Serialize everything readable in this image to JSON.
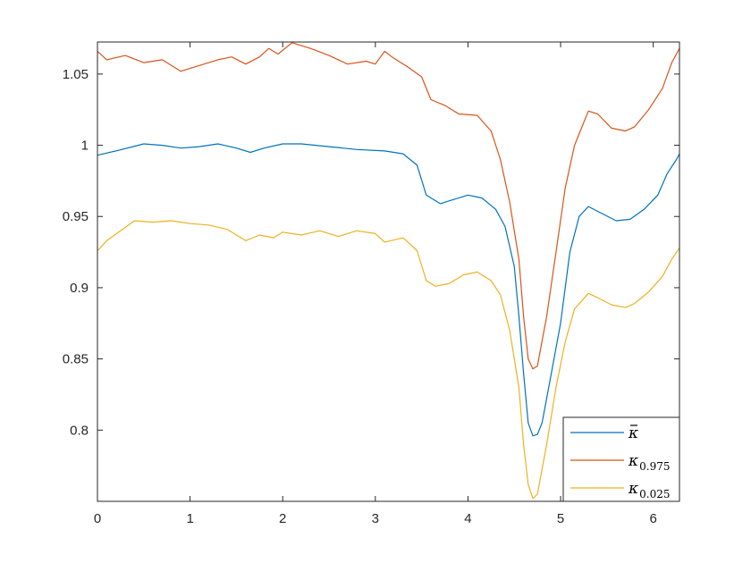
{
  "chart_data": {
    "type": "line",
    "title": "",
    "xlabel": "",
    "ylabel": "",
    "xlim": [
      0,
      6.2832
    ],
    "ylim": [
      0.75,
      1.0725
    ],
    "grid": false,
    "legend_position": "bottom-right",
    "x_ticks": [
      0,
      1,
      2,
      3,
      4,
      5,
      6
    ],
    "x_tick_labels": [
      "0",
      "1",
      "2",
      "3",
      "4",
      "5",
      "6"
    ],
    "y_ticks": [
      0.8,
      0.85,
      0.9,
      0.95,
      1.0,
      1.05
    ],
    "y_tick_labels": [
      "0.8",
      "0.85",
      "0.9",
      "0.95",
      "1",
      "1.05"
    ],
    "series": [
      {
        "name": "κ̄",
        "legend_base": "κ",
        "legend_bar": true,
        "legend_sub": "",
        "color": "#0072BD",
        "points": [
          [
            0,
            0.993
          ],
          [
            0.2,
            0.996
          ],
          [
            0.5,
            1.001
          ],
          [
            0.7,
            1.0
          ],
          [
            0.9,
            0.998
          ],
          [
            1.1,
            0.999
          ],
          [
            1.3,
            1.001
          ],
          [
            1.5,
            0.998
          ],
          [
            1.65,
            0.995
          ],
          [
            1.8,
            0.998
          ],
          [
            2.0,
            1.001
          ],
          [
            2.2,
            1.001
          ],
          [
            2.5,
            0.999
          ],
          [
            2.8,
            0.997
          ],
          [
            3.1,
            0.996
          ],
          [
            3.3,
            0.994
          ],
          [
            3.45,
            0.986
          ],
          [
            3.55,
            0.965
          ],
          [
            3.7,
            0.959
          ],
          [
            3.85,
            0.962
          ],
          [
            4.0,
            0.965
          ],
          [
            4.15,
            0.963
          ],
          [
            4.3,
            0.955
          ],
          [
            4.4,
            0.943
          ],
          [
            4.5,
            0.915
          ],
          [
            4.55,
            0.88
          ],
          [
            4.6,
            0.84
          ],
          [
            4.65,
            0.805
          ],
          [
            4.7,
            0.796
          ],
          [
            4.75,
            0.797
          ],
          [
            4.8,
            0.805
          ],
          [
            4.9,
            0.84
          ],
          [
            5.0,
            0.875
          ],
          [
            5.05,
            0.9
          ],
          [
            5.1,
            0.925
          ],
          [
            5.2,
            0.95
          ],
          [
            5.3,
            0.957
          ],
          [
            5.45,
            0.952
          ],
          [
            5.6,
            0.947
          ],
          [
            5.75,
            0.948
          ],
          [
            5.9,
            0.955
          ],
          [
            6.05,
            0.965
          ],
          [
            6.15,
            0.98
          ],
          [
            6.25,
            0.99
          ],
          [
            6.2832,
            0.994
          ]
        ]
      },
      {
        "name": "κ0.975",
        "legend_base": "κ",
        "legend_bar": false,
        "legend_sub": "0.975",
        "color": "#D95319",
        "points": [
          [
            0,
            1.066
          ],
          [
            0.1,
            1.06
          ],
          [
            0.3,
            1.063
          ],
          [
            0.5,
            1.058
          ],
          [
            0.7,
            1.06
          ],
          [
            0.9,
            1.052
          ],
          [
            1.1,
            1.056
          ],
          [
            1.3,
            1.06
          ],
          [
            1.45,
            1.062
          ],
          [
            1.6,
            1.057
          ],
          [
            1.75,
            1.062
          ],
          [
            1.85,
            1.068
          ],
          [
            1.95,
            1.064
          ],
          [
            2.1,
            1.072
          ],
          [
            2.3,
            1.068
          ],
          [
            2.5,
            1.063
          ],
          [
            2.7,
            1.057
          ],
          [
            2.9,
            1.059
          ],
          [
            3.0,
            1.057
          ],
          [
            3.1,
            1.066
          ],
          [
            3.2,
            1.061
          ],
          [
            3.35,
            1.055
          ],
          [
            3.5,
            1.048
          ],
          [
            3.6,
            1.032
          ],
          [
            3.75,
            1.028
          ],
          [
            3.9,
            1.022
          ],
          [
            4.1,
            1.021
          ],
          [
            4.25,
            1.01
          ],
          [
            4.35,
            0.99
          ],
          [
            4.45,
            0.96
          ],
          [
            4.55,
            0.92
          ],
          [
            4.6,
            0.88
          ],
          [
            4.65,
            0.85
          ],
          [
            4.7,
            0.843
          ],
          [
            4.75,
            0.845
          ],
          [
            4.85,
            0.88
          ],
          [
            4.95,
            0.925
          ],
          [
            5.05,
            0.97
          ],
          [
            5.15,
            1.0
          ],
          [
            5.3,
            1.024
          ],
          [
            5.4,
            1.022
          ],
          [
            5.55,
            1.012
          ],
          [
            5.7,
            1.01
          ],
          [
            5.8,
            1.013
          ],
          [
            5.95,
            1.025
          ],
          [
            6.1,
            1.04
          ],
          [
            6.2,
            1.058
          ],
          [
            6.2832,
            1.068
          ]
        ]
      },
      {
        "name": "κ0.025",
        "legend_base": "κ",
        "legend_bar": false,
        "legend_sub": "0.025",
        "color": "#EDB120",
        "points": [
          [
            0,
            0.926
          ],
          [
            0.1,
            0.933
          ],
          [
            0.25,
            0.94
          ],
          [
            0.4,
            0.947
          ],
          [
            0.6,
            0.946
          ],
          [
            0.8,
            0.947
          ],
          [
            1.0,
            0.945
          ],
          [
            1.2,
            0.944
          ],
          [
            1.4,
            0.941
          ],
          [
            1.6,
            0.933
          ],
          [
            1.75,
            0.937
          ],
          [
            1.9,
            0.935
          ],
          [
            2.0,
            0.939
          ],
          [
            2.2,
            0.937
          ],
          [
            2.4,
            0.94
          ],
          [
            2.6,
            0.936
          ],
          [
            2.8,
            0.94
          ],
          [
            3.0,
            0.938
          ],
          [
            3.1,
            0.932
          ],
          [
            3.3,
            0.935
          ],
          [
            3.45,
            0.926
          ],
          [
            3.55,
            0.905
          ],
          [
            3.65,
            0.901
          ],
          [
            3.8,
            0.903
          ],
          [
            3.95,
            0.909
          ],
          [
            4.1,
            0.911
          ],
          [
            4.25,
            0.905
          ],
          [
            4.35,
            0.895
          ],
          [
            4.45,
            0.87
          ],
          [
            4.55,
            0.83
          ],
          [
            4.6,
            0.79
          ],
          [
            4.65,
            0.762
          ],
          [
            4.7,
            0.752
          ],
          [
            4.75,
            0.755
          ],
          [
            4.85,
            0.79
          ],
          [
            4.95,
            0.83
          ],
          [
            5.05,
            0.862
          ],
          [
            5.15,
            0.885
          ],
          [
            5.3,
            0.896
          ],
          [
            5.4,
            0.893
          ],
          [
            5.55,
            0.888
          ],
          [
            5.7,
            0.886
          ],
          [
            5.8,
            0.889
          ],
          [
            5.95,
            0.897
          ],
          [
            6.1,
            0.908
          ],
          [
            6.2,
            0.92
          ],
          [
            6.2832,
            0.928
          ]
        ]
      }
    ]
  }
}
